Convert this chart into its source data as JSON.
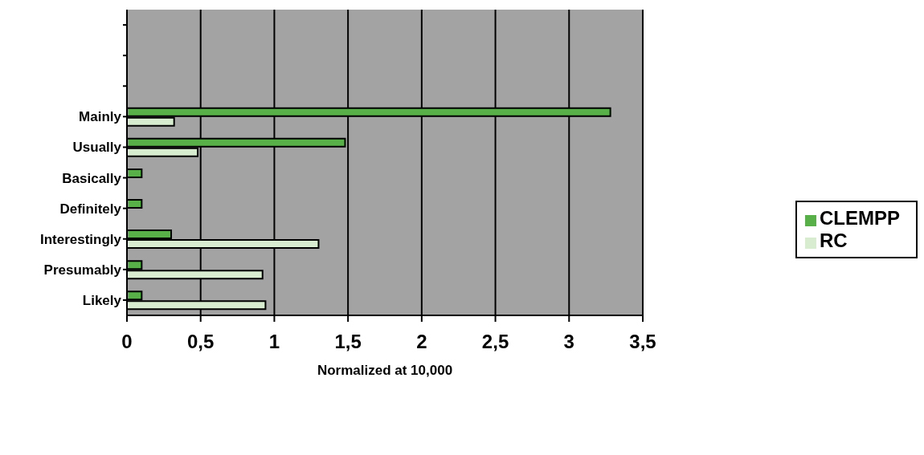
{
  "chart_data": {
    "type": "bar",
    "orientation": "horizontal",
    "xlabel": "Normalized at 10,000",
    "categories": [
      null,
      null,
      null,
      "Mainly",
      "Usually",
      "Basically",
      "Definitely",
      "Interestingly",
      "Presumably",
      "Likely"
    ],
    "series": [
      {
        "name": "CLEMPP",
        "color": "#58b048",
        "values": [
          null,
          null,
          null,
          3.28,
          1.48,
          0.1,
          0.1,
          0.3,
          0.1,
          0.1
        ]
      },
      {
        "name": "RC",
        "color": "#d8ecd0",
        "values": [
          null,
          null,
          null,
          0.32,
          0.48,
          null,
          null,
          1.3,
          0.92,
          0.94
        ]
      }
    ],
    "xlim": [
      0,
      3.5
    ],
    "xticks": [
      {
        "value": 0,
        "label": "0"
      },
      {
        "value": 0.5,
        "label": "0,5"
      },
      {
        "value": 1,
        "label": "1"
      },
      {
        "value": 1.5,
        "label": "1,5"
      },
      {
        "value": 2,
        "label": "2"
      },
      {
        "value": 2.5,
        "label": "2,5"
      },
      {
        "value": 3,
        "label": "3"
      },
      {
        "value": 3.5,
        "label": "3,5"
      }
    ],
    "grid": "x",
    "legend": "right"
  }
}
